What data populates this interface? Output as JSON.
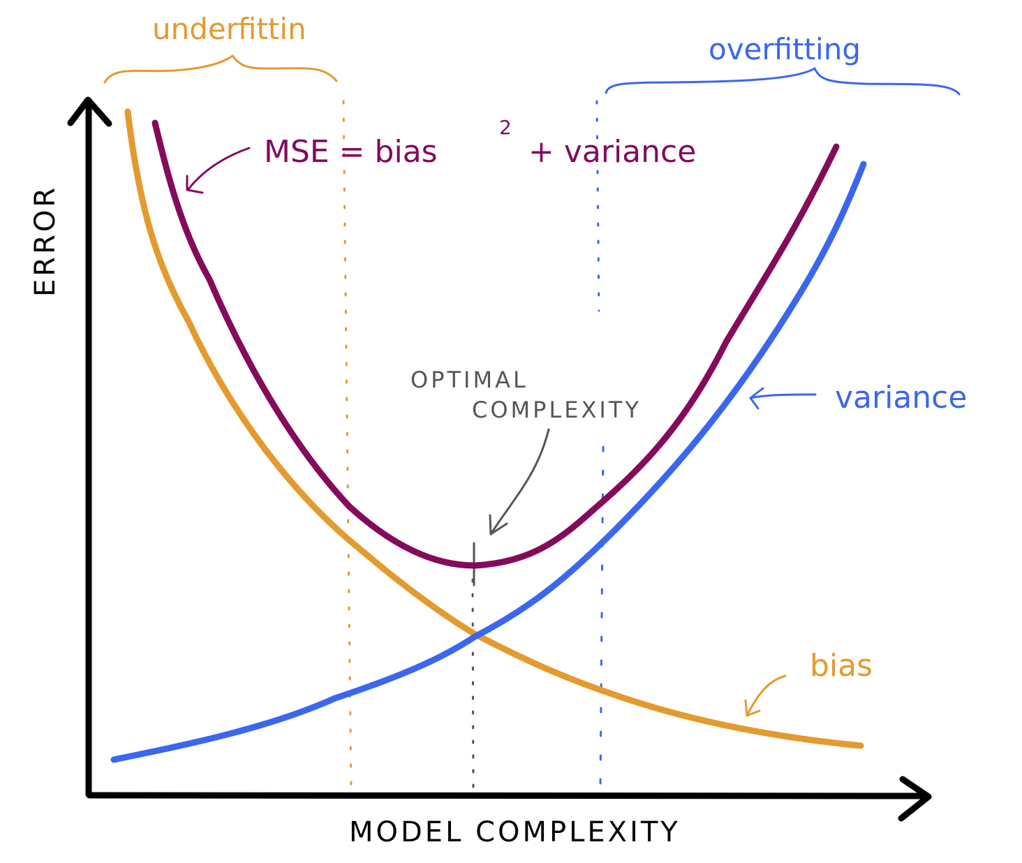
{
  "axes": {
    "y_label": "ERROR",
    "x_label": "MODEL COMPLEXITY"
  },
  "regions": {
    "underfitting": {
      "label": "underfittin"
    },
    "overfitting": {
      "label": "overfitting"
    }
  },
  "annotations": {
    "mse_prefix": "MSE = bias",
    "mse_exponent": "2",
    "mse_suffix": "+ variance",
    "optimal_line1": "OPTIMAL",
    "optimal_line2": "COMPLEXITY",
    "variance_label": "variance",
    "bias_label": "bias"
  },
  "colors": {
    "axis": "#000000",
    "bias": "#e49a2e",
    "variance": "#3a66f0",
    "mse": "#840a5c",
    "optimal": "#555555",
    "underfitting": "#e49a2e",
    "overfitting": "#3a66f0"
  }
}
